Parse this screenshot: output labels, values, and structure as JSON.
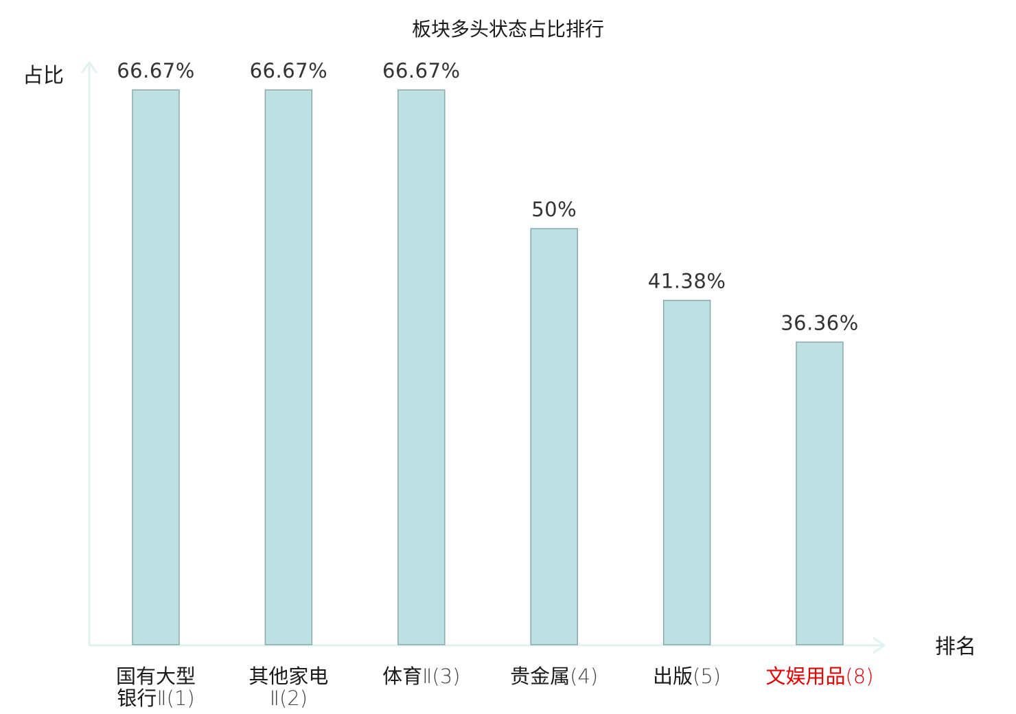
{
  "chart_data": {
    "type": "bar",
    "title": "板块多头状态占比排行",
    "ylabel": "占比",
    "xlabel": "排名",
    "ylim": [
      0,
      66.67
    ],
    "grid": false,
    "categories": [
      {
        "name": "国有大型银行",
        "rank": "Ⅱ(1)",
        "highlight": false
      },
      {
        "name": "其他家电",
        "rank": "Ⅱ(2)",
        "highlight": false
      },
      {
        "name": "体育",
        "rank": "Ⅱ(3)",
        "highlight": false
      },
      {
        "name": "贵金属",
        "rank": "(4)",
        "highlight": false
      },
      {
        "name": "出版",
        "rank": "(5)",
        "highlight": false
      },
      {
        "name": "文娱用品",
        "rank": "(8)",
        "highlight": true
      }
    ],
    "values": [
      66.67,
      66.67,
      66.67,
      50,
      41.38,
      36.36
    ],
    "value_labels": [
      "66.67%",
      "66.67%",
      "66.67%",
      "50%",
      "41.38%",
      "36.36%"
    ],
    "colors": {
      "bar_fill": "#bde0e3",
      "bar_stroke": "#8aa8aa",
      "axis": "#dff2ef",
      "highlight": "#e00000"
    }
  }
}
